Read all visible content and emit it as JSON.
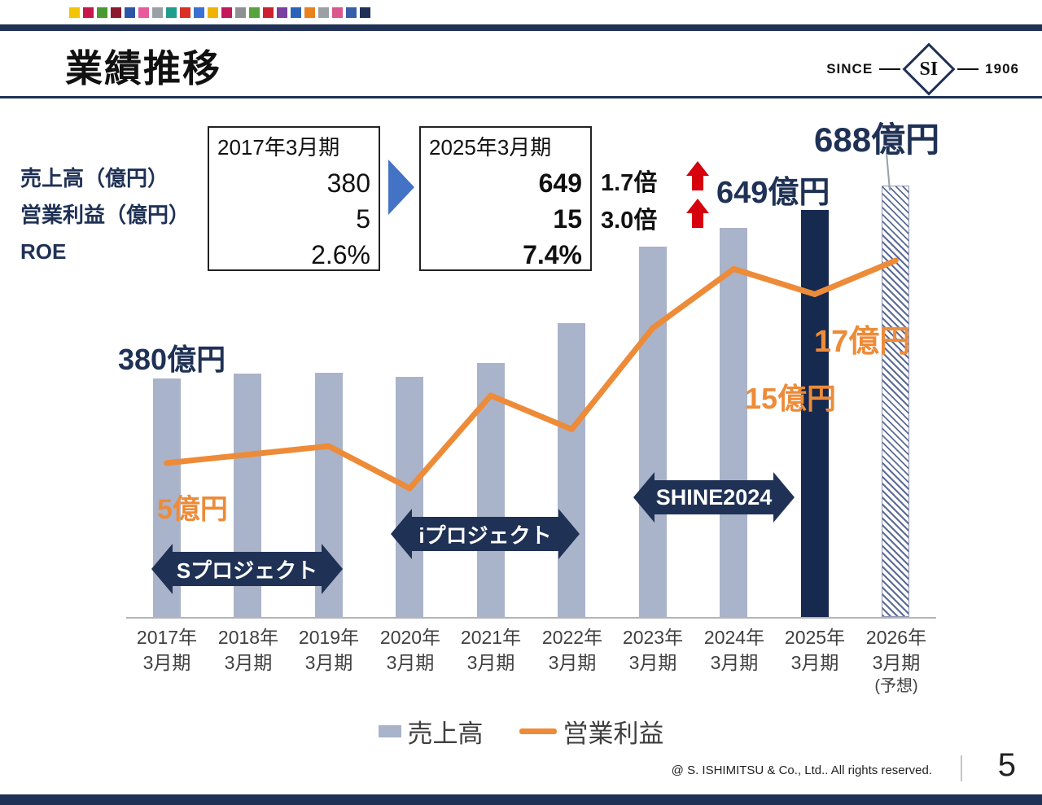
{
  "header": {
    "title": "業績推移",
    "logo": {
      "since": "SINCE",
      "monogram": "SI",
      "year": "1906"
    }
  },
  "decor": {
    "square_colors": [
      "#f5c400",
      "#c8174a",
      "#4a9b2f",
      "#8b1a2f",
      "#2b56a7",
      "#e85a9b",
      "#9aa0a6",
      "#1f9e8e",
      "#d93025",
      "#3b6fd4",
      "#f0b400",
      "#c2185b",
      "#8d9094",
      "#57a33e",
      "#cf2030",
      "#7b3fa0",
      "#2a63b8",
      "#e8821e",
      "#9aa0a6",
      "#d9578a",
      "#355fa8",
      "#1f3155"
    ]
  },
  "colors": {
    "navy": "#1f3155",
    "bar": "#a9b3c9",
    "bar_highlight": "#16294f",
    "orange": "#ed8b38",
    "red": "#d7000f",
    "blue_arrow": "#4472c4"
  },
  "summary": {
    "row_labels": [
      "売上高（億円）",
      "営業利益（億円）",
      "ROE"
    ],
    "periods": [
      {
        "header": "2017年3月期",
        "values": [
          "380",
          "5",
          "2.6%"
        ]
      },
      {
        "header": "2025年3月期",
        "values": [
          "649",
          "15",
          "7.4%"
        ]
      }
    ],
    "multipliers": [
      "1.7倍",
      "3.0倍"
    ]
  },
  "annotations": {
    "sales_2026": "688億円",
    "sales_2025": "649億円",
    "sales_2017": "380億円",
    "profit_2017": "5億円",
    "profit_2025": "15億円",
    "profit_2026": "17億円"
  },
  "banners": [
    "Sプロジェクト",
    "iプロジェクト",
    "SHINE2024"
  ],
  "chart_data": {
    "type": "bar",
    "categories": [
      "2017年3月期",
      "2018年3月期",
      "2019年3月期",
      "2020年3月期",
      "2021年3月期",
      "2022年3月期",
      "2023年3月期",
      "2024年3月期",
      "2025年3月期",
      "2026年3月期(予想)"
    ],
    "tick_labels": [
      [
        "2017年",
        "3月期"
      ],
      [
        "2018年",
        "3月期"
      ],
      [
        "2019年",
        "3月期"
      ],
      [
        "2020年",
        "3月期"
      ],
      [
        "2021年",
        "3月期"
      ],
      [
        "2022年",
        "3月期"
      ],
      [
        "2023年",
        "3月期"
      ],
      [
        "2024年",
        "3月期"
      ],
      [
        "2025年",
        "3月期"
      ],
      [
        "2026年",
        "3月期",
        "(予想)"
      ]
    ],
    "series": [
      {
        "name": "売上高",
        "type": "bar",
        "unit": "億円",
        "values": [
          380,
          388,
          390,
          383,
          405,
          468,
          590,
          620,
          649,
          688
        ]
      },
      {
        "name": "営業利益",
        "type": "line",
        "unit": "億円",
        "values": [
          5,
          5.5,
          6,
          3.5,
          9,
          7,
          13,
          16.5,
          15,
          17
        ]
      }
    ],
    "highlight_index": 8,
    "forecast_index": 9,
    "ylim": [
      0,
      700
    ],
    "title": "業績推移",
    "legend_position": "bottom",
    "grid": false,
    "notes": "営業利益の折れ線は拡大した第2軸で描画。2026年3月期は予想(ハッチング棒)。"
  },
  "legend": {
    "items": [
      {
        "label": "売上高",
        "swatch": "bar"
      },
      {
        "label": "営業利益",
        "swatch": "line"
      }
    ]
  },
  "footer": {
    "copyright": "@ S. ISHIMITSU & Co., Ltd.. All rights reserved.",
    "page": "5"
  }
}
